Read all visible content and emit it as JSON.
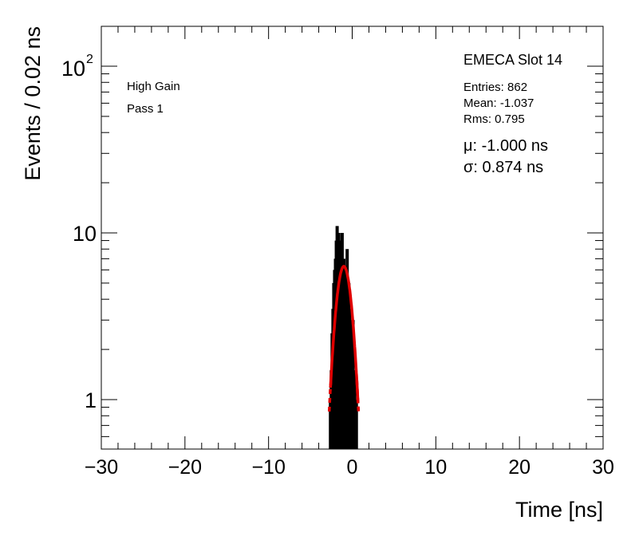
{
  "chart_data": {
    "type": "histogram",
    "title": "EMECA Slot 14",
    "xlabel": "Time [ns]",
    "ylabel": "Events / 0.02 ns",
    "xlim": [
      -30,
      30
    ],
    "ylim": [
      0.55,
      180
    ],
    "yscale": "log",
    "bin_width": 0.02,
    "x_ticks": [
      -30,
      -20,
      -10,
      0,
      10,
      20,
      30
    ],
    "x_tick_labels": [
      "−30",
      "−20",
      "−10",
      "0",
      "10",
      "20",
      "30"
    ],
    "y_ticks": [
      1,
      10,
      100
    ],
    "y_tick_labels": {
      "base": "10",
      "exp": "2",
      "ten": "10",
      "one": "1"
    },
    "labels": [
      "High Gain",
      "Pass 1"
    ],
    "stats": {
      "entries": "Entries: 862",
      "mean": "Mean: -1.037",
      "rms": "Rms: 0.795"
    },
    "fit": {
      "mu_label": "μ: -1.000 ns",
      "sigma_label": "σ: 0.874 ns",
      "mu": -1.0,
      "sigma": 0.874,
      "amplitude": 6.3,
      "color": "#e00000",
      "range": [
        -2.6,
        0.7
      ]
    },
    "histogram_color": "#000000",
    "histogram_x": [
      -2.6,
      -2.5,
      -2.4,
      -2.3,
      -2.2,
      -2.1,
      -2.0,
      -1.9,
      -1.8,
      -1.7,
      -1.6,
      -1.5,
      -1.4,
      -1.3,
      -1.2,
      -1.1,
      -1.0,
      -0.9,
      -0.8,
      -0.7,
      -0.6,
      -0.5,
      -0.4,
      -0.3,
      -0.2,
      -0.1,
      0.0,
      0.1,
      0.2,
      0.3,
      0.4,
      0.5
    ],
    "histogram_y": [
      1,
      1.5,
      2.5,
      3.5,
      5,
      6,
      7,
      9,
      11,
      8,
      10,
      9,
      8,
      7,
      10,
      6,
      7,
      4,
      6,
      5,
      8,
      4,
      5,
      3.5,
      3,
      2.5,
      2,
      3,
      1.5,
      1.5,
      1,
      1
    ]
  }
}
